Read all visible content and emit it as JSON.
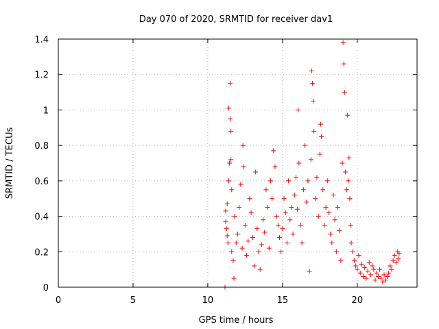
{
  "chart_data": {
    "type": "scatter",
    "title": "Day 070 of 2020, SRMTID for receiver dav1",
    "xlabel": "GPS time / hours",
    "ylabel": "SRMTID / TECUs",
    "xlim": [
      0,
      24
    ],
    "ylim": [
      0,
      1.4
    ],
    "xticks": [
      0,
      5,
      10,
      15,
      20
    ],
    "yticks": [
      0,
      0.2,
      0.4,
      0.6,
      0.8,
      1,
      1.2,
      1.4
    ],
    "ytick_labels": [
      "0",
      "0.2",
      "0.4",
      "0.6",
      "0.8",
      "1",
      "1.2",
      "1.4"
    ],
    "grid": true,
    "marker": "+",
    "series": [
      {
        "name": "dav1",
        "color": "#ff0000",
        "points": [
          [
            11.15,
            0.0
          ],
          [
            11.2,
            0.37
          ],
          [
            11.25,
            0.33
          ],
          [
            11.3,
            0.29
          ],
          [
            11.35,
            0.25
          ],
          [
            11.4,
            1.01
          ],
          [
            11.45,
            0.7
          ],
          [
            11.5,
            1.15
          ],
          [
            11.55,
            0.88
          ],
          [
            11.6,
            0.55
          ],
          [
            11.2,
            0.43
          ],
          [
            11.3,
            0.47
          ],
          [
            11.4,
            0.6
          ],
          [
            11.5,
            0.95
          ],
          [
            11.55,
            0.72
          ],
          [
            11.6,
            0.2
          ],
          [
            11.7,
            0.15
          ],
          [
            11.75,
            0.05
          ],
          [
            11.8,
            0.4
          ],
          [
            11.9,
            0.25
          ],
          [
            12.0,
            0.3
          ],
          [
            12.1,
            0.45
          ],
          [
            12.2,
            0.58
          ],
          [
            12.3,
            0.22
          ],
          [
            12.35,
            0.8
          ],
          [
            12.4,
            0.68
          ],
          [
            12.5,
            0.35
          ],
          [
            12.6,
            0.18
          ],
          [
            12.7,
            0.26
          ],
          [
            12.8,
            0.5
          ],
          [
            12.9,
            0.42
          ],
          [
            13.0,
            0.28
          ],
          [
            13.1,
            0.12
          ],
          [
            13.2,
            0.65
          ],
          [
            13.3,
            0.33
          ],
          [
            13.4,
            0.2
          ],
          [
            13.5,
            0.1
          ],
          [
            13.6,
            0.24
          ],
          [
            13.7,
            0.38
          ],
          [
            13.8,
            0.31
          ],
          [
            13.9,
            0.55
          ],
          [
            14.0,
            0.45
          ],
          [
            14.1,
            0.22
          ],
          [
            14.2,
            0.6
          ],
          [
            14.3,
            0.5
          ],
          [
            14.4,
            0.77
          ],
          [
            14.5,
            0.68
          ],
          [
            14.6,
            0.4
          ],
          [
            14.7,
            0.35
          ],
          [
            14.8,
            0.28
          ],
          [
            14.9,
            0.2
          ],
          [
            15.0,
            0.33
          ],
          [
            15.1,
            0.5
          ],
          [
            15.2,
            0.42
          ],
          [
            15.3,
            0.25
          ],
          [
            15.4,
            0.6
          ],
          [
            15.5,
            0.38
          ],
          [
            15.6,
            0.45
          ],
          [
            15.7,
            0.3
          ],
          [
            15.8,
            0.52
          ],
          [
            15.9,
            0.62
          ],
          [
            16.0,
            0.44
          ],
          [
            16.05,
            1.0
          ],
          [
            16.1,
            0.7
          ],
          [
            16.2,
            0.35
          ],
          [
            16.3,
            0.25
          ],
          [
            16.4,
            0.55
          ],
          [
            16.5,
            0.8
          ],
          [
            16.6,
            0.48
          ],
          [
            16.7,
            0.6
          ],
          [
            16.8,
            0.09
          ],
          [
            16.9,
            0.72
          ],
          [
            16.95,
            1.22
          ],
          [
            17.0,
            1.15
          ],
          [
            17.05,
            1.05
          ],
          [
            17.1,
            0.88
          ],
          [
            17.2,
            0.5
          ],
          [
            17.3,
            0.62
          ],
          [
            17.4,
            0.4
          ],
          [
            17.5,
            0.75
          ],
          [
            17.55,
            0.92
          ],
          [
            17.6,
            0.85
          ],
          [
            17.7,
            0.55
          ],
          [
            17.8,
            0.35
          ],
          [
            17.9,
            0.45
          ],
          [
            18.0,
            0.6
          ],
          [
            18.1,
            0.42
          ],
          [
            18.2,
            0.3
          ],
          [
            18.3,
            0.25
          ],
          [
            18.4,
            0.52
          ],
          [
            18.5,
            0.38
          ],
          [
            18.6,
            0.2
          ],
          [
            18.7,
            0.45
          ],
          [
            18.8,
            0.32
          ],
          [
            18.9,
            0.15
          ],
          [
            19.0,
            0.7
          ],
          [
            19.05,
            1.38
          ],
          [
            19.1,
            1.26
          ],
          [
            19.15,
            1.1
          ],
          [
            19.2,
            0.65
          ],
          [
            19.3,
            0.55
          ],
          [
            19.35,
            0.97
          ],
          [
            19.4,
            0.6
          ],
          [
            19.45,
            0.73
          ],
          [
            19.5,
            0.5
          ],
          [
            19.55,
            0.35
          ],
          [
            19.6,
            0.25
          ],
          [
            19.7,
            0.2
          ],
          [
            19.8,
            0.15
          ],
          [
            19.9,
            0.12
          ],
          [
            20.0,
            0.1
          ],
          [
            20.1,
            0.18
          ],
          [
            20.2,
            0.08
          ],
          [
            20.3,
            0.13
          ],
          [
            20.4,
            0.06
          ],
          [
            20.5,
            0.11
          ],
          [
            20.6,
            0.05
          ],
          [
            20.7,
            0.09
          ],
          [
            20.8,
            0.14
          ],
          [
            20.9,
            0.07
          ],
          [
            21.0,
            0.12
          ],
          [
            21.1,
            0.1
          ],
          [
            21.2,
            0.04
          ],
          [
            21.3,
            0.08
          ],
          [
            21.4,
            0.06
          ],
          [
            21.5,
            0.1
          ],
          [
            21.6,
            0.05
          ],
          [
            21.7,
            0.03
          ],
          [
            21.8,
            0.07
          ],
          [
            21.9,
            0.04
          ],
          [
            22.0,
            0.06
          ],
          [
            22.1,
            0.08
          ],
          [
            22.2,
            0.12
          ],
          [
            22.3,
            0.1
          ],
          [
            22.4,
            0.15
          ],
          [
            22.5,
            0.18
          ],
          [
            22.6,
            0.14
          ],
          [
            22.7,
            0.2
          ],
          [
            22.8,
            0.19
          ],
          [
            22.75,
            0.16
          ]
        ]
      }
    ]
  }
}
